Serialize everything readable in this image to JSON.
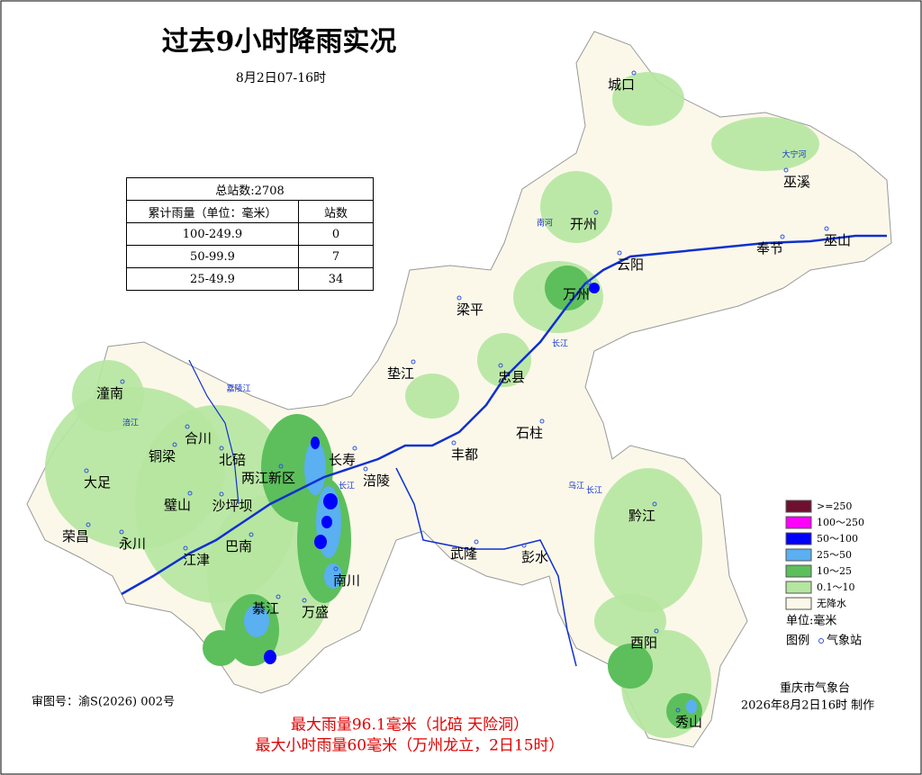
{
  "title": "过去9小时降雨实况",
  "subtitle": "8月2日07-16时",
  "table": {
    "total": "总站数:2708",
    "header": [
      "累计雨量（单位：毫米）",
      "站数"
    ],
    "rows": [
      [
        "100-249.9",
        "0"
      ],
      [
        "50-99.9",
        "7"
      ],
      [
        "25-49.9",
        "34"
      ]
    ]
  },
  "places": [
    "城口",
    "巫溪",
    "开州",
    "云阳",
    "奉节",
    "巫山",
    "万州",
    "梁平",
    "垫江",
    "忠县",
    "石柱",
    "丰都",
    "长寿",
    "涪陵",
    "潼南",
    "合川",
    "铜梁",
    "北碚",
    "两江新区",
    "大足",
    "璧山",
    "沙坪坝",
    "荣昌",
    "永川",
    "巴南",
    "江津",
    "武隆",
    "彭水",
    "黔江",
    "南川",
    "綦江",
    "万盛",
    "酉阳",
    "秀山"
  ],
  "rivers": [
    "大宁河",
    "南河",
    "长江",
    "长江",
    "长江",
    "涪江",
    "嘉陵江",
    "乌江"
  ],
  "legend": {
    "items": [
      {
        "label": ">=250",
        "color": "#6e1030"
      },
      {
        "label": "100～250",
        "color": "#ff00ff"
      },
      {
        "label": "50～100",
        "color": "#0000ff"
      },
      {
        "label": "25～50",
        "color": "#5ab0f0"
      },
      {
        "label": "10～25",
        "color": "#5cbf5c"
      },
      {
        "label": "0.1～10",
        "color": "#b5e6a0"
      },
      {
        "label": "无降水",
        "color": "#fbf8ea"
      }
    ],
    "unit": "单位:毫米",
    "legend_word": "图例",
    "station": "气象站"
  },
  "footer": {
    "approval": "审图号：渝S(2026) 002号",
    "agency": "重庆市气象台",
    "made": "2026年8月2日16时 制作",
    "max_rain": "最大雨量96.1毫米（北碚 天险洞）",
    "max_hourly": "最大小时雨量60毫米（万州龙立，2日15时）"
  }
}
